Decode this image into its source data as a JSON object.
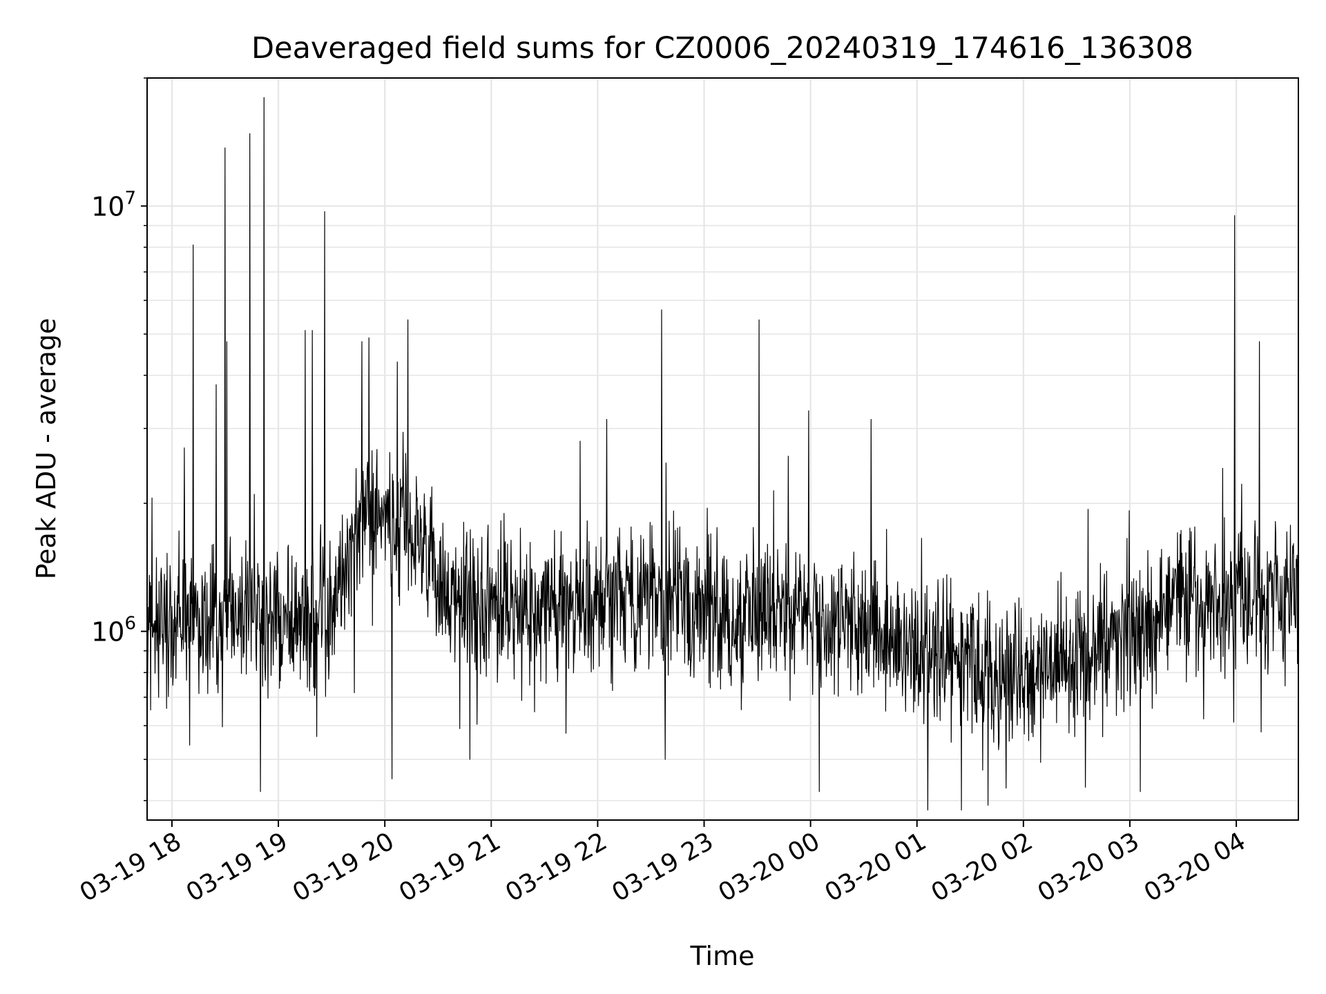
{
  "chart_data": {
    "type": "line",
    "title": "Deaveraged field sums for CZ0006_20240319_174616_136308",
    "xlabel": "Time",
    "ylabel": "Peak ADU - average",
    "y_scale": "log",
    "ylim": [
      360000,
      20000000
    ],
    "xlim": [
      "2024-03-19 17:46",
      "2024-03-20 04:35"
    ],
    "grid": true,
    "line_color": "#000000",
    "x_ticks": [
      {
        "label": "03-19 18",
        "t": "2024-03-19 18:00"
      },
      {
        "label": "03-19 19",
        "t": "2024-03-19 19:00"
      },
      {
        "label": "03-19 20",
        "t": "2024-03-19 20:00"
      },
      {
        "label": "03-19 21",
        "t": "2024-03-19 21:00"
      },
      {
        "label": "03-19 22",
        "t": "2024-03-19 22:00"
      },
      {
        "label": "03-19 23",
        "t": "2024-03-19 23:00"
      },
      {
        "label": "03-20 00",
        "t": "2024-03-20 00:00"
      },
      {
        "label": "03-20 01",
        "t": "2024-03-20 01:00"
      },
      {
        "label": "03-20 02",
        "t": "2024-03-20 02:00"
      },
      {
        "label": "03-20 03",
        "t": "2024-03-20 03:00"
      },
      {
        "label": "03-20 04",
        "t": "2024-03-20 04:00"
      }
    ],
    "y_major_ticks": [
      {
        "base": "10",
        "exp": "6",
        "value": 1000000
      },
      {
        "base": "10",
        "exp": "7",
        "value": 10000000
      }
    ],
    "baseline": [
      {
        "t": "2024-03-19 17:46",
        "y": 1050000
      },
      {
        "t": "2024-03-19 18:30",
        "y": 1100000
      },
      {
        "t": "2024-03-19 19:00",
        "y": 1050000
      },
      {
        "t": "2024-03-19 19:30",
        "y": 1150000
      },
      {
        "t": "2024-03-19 19:50",
        "y": 1900000
      },
      {
        "t": "2024-03-19 20:15",
        "y": 1800000
      },
      {
        "t": "2024-03-19 20:35",
        "y": 1150000
      },
      {
        "t": "2024-03-19 21:30",
        "y": 1150000
      },
      {
        "t": "2024-03-19 22:30",
        "y": 1180000
      },
      {
        "t": "2024-03-19 23:30",
        "y": 1120000
      },
      {
        "t": "2024-03-20 00:30",
        "y": 1000000
      },
      {
        "t": "2024-03-20 01:00",
        "y": 900000
      },
      {
        "t": "2024-03-20 01:45",
        "y": 800000
      },
      {
        "t": "2024-03-20 02:30",
        "y": 850000
      },
      {
        "t": "2024-03-20 03:00",
        "y": 1000000
      },
      {
        "t": "2024-03-20 03:30",
        "y": 1150000
      },
      {
        "t": "2024-03-20 04:35",
        "y": 1250000
      }
    ],
    "spikes": [
      {
        "t": "2024-03-19 18:07",
        "y": 2700000
      },
      {
        "t": "2024-03-19 18:12",
        "y": 8100000
      },
      {
        "t": "2024-03-19 18:25",
        "y": 3800000
      },
      {
        "t": "2024-03-19 18:30",
        "y": 13700000
      },
      {
        "t": "2024-03-19 18:31",
        "y": 4800000
      },
      {
        "t": "2024-03-19 18:44",
        "y": 14800000
      },
      {
        "t": "2024-03-19 18:52",
        "y": 18000000
      },
      {
        "t": "2024-03-19 19:15",
        "y": 5100000
      },
      {
        "t": "2024-03-19 19:19",
        "y": 5100000
      },
      {
        "t": "2024-03-19 19:26",
        "y": 9700000
      },
      {
        "t": "2024-03-19 19:47",
        "y": 4800000
      },
      {
        "t": "2024-03-19 19:51",
        "y": 4900000
      },
      {
        "t": "2024-03-19 20:07",
        "y": 4300000
      },
      {
        "t": "2024-03-19 20:13",
        "y": 5400000
      },
      {
        "t": "2024-03-19 21:50",
        "y": 2800000
      },
      {
        "t": "2024-03-19 22:05",
        "y": 3150000
      },
      {
        "t": "2024-03-19 22:36",
        "y": 5700000
      },
      {
        "t": "2024-03-19 23:31",
        "y": 5400000
      },
      {
        "t": "2024-03-19 23:59",
        "y": 3300000
      },
      {
        "t": "2024-03-20 00:34",
        "y": 3150000
      },
      {
        "t": "2024-03-20 03:59",
        "y": 9500000
      },
      {
        "t": "2024-03-20 04:13",
        "y": 4800000
      }
    ],
    "dips": [
      {
        "t": "2024-03-19 18:10",
        "y": 540000
      },
      {
        "t": "2024-03-19 18:50",
        "y": 420000
      },
      {
        "t": "2024-03-19 20:04",
        "y": 450000
      },
      {
        "t": "2024-03-19 20:48",
        "y": 500000
      },
      {
        "t": "2024-03-19 22:38",
        "y": 500000
      },
      {
        "t": "2024-03-20 00:05",
        "y": 420000
      },
      {
        "t": "2024-03-20 01:06",
        "y": 380000
      },
      {
        "t": "2024-03-20 01:25",
        "y": 380000
      },
      {
        "t": "2024-03-20 01:40",
        "y": 390000
      },
      {
        "t": "2024-03-20 02:35",
        "y": 430000
      },
      {
        "t": "2024-03-20 03:06",
        "y": 420000
      },
      {
        "t": "2024-03-20 04:14",
        "y": 580000
      }
    ]
  }
}
